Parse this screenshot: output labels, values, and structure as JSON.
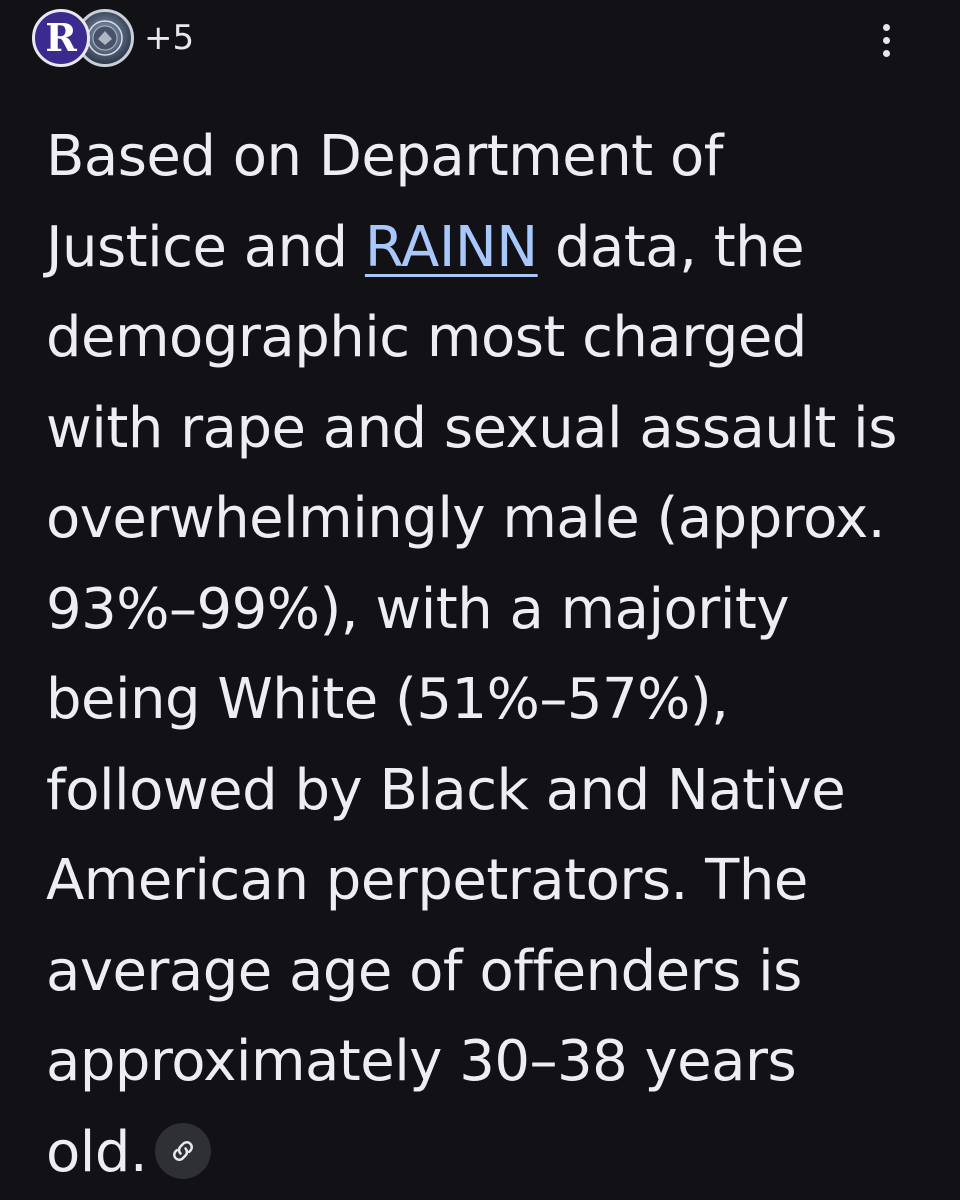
{
  "source_row": {
    "avatar_letter": "R",
    "more_sources": "+5"
  },
  "menu": {
    "icon": "kebab-menu-icon"
  },
  "answer": {
    "line1": "Based on Department of",
    "line2_before": "Justice and ",
    "line2_link": "RAINN",
    "line2_after": " data, the",
    "line3": "demographic most charged",
    "line4": "with rape and sexual assault is",
    "line5": "overwhelmingly male (approx.",
    "line6": "93%–99%), with a majority",
    "line7": "being White (51%–57%),",
    "line8": "followed by Black and Native",
    "line9": "American perpetrators. The",
    "line10": "average age of offenders is",
    "line11": "approximately 30–38 years",
    "line12": "old."
  },
  "citation": {
    "icon": "link-icon"
  },
  "colors": {
    "background": "#111116",
    "text": "#eceef2",
    "link": "#a8c7fa",
    "chip": "#2e3035"
  }
}
